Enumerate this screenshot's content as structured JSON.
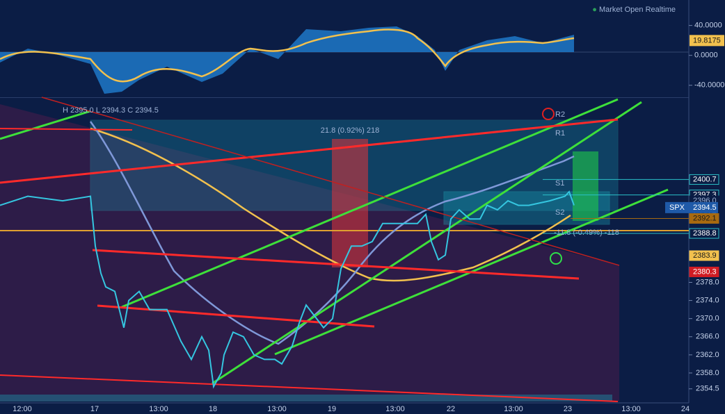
{
  "status": {
    "label": "Market Open",
    "mode": "Realtime"
  },
  "header": {
    "high": "H 2395.0",
    "low": "L 2394.3",
    "close": "C 2394.5"
  },
  "oscillator": {
    "ylim": [
      -56,
      74
    ],
    "yticks": [
      {
        "value": 40,
        "label": "40.0000"
      },
      {
        "value": 0,
        "label": "0.0000"
      },
      {
        "value": -40,
        "label": "-40.0000"
      }
    ],
    "last": {
      "value": 19.8175,
      "label": "19.8175"
    }
  },
  "price_axis": {
    "ylim": [
      2351.4,
      2418.7
    ],
    "yticks": [
      {
        "value": 2354.5,
        "label": "2354.5"
      },
      {
        "value": 2358,
        "label": "2358.0"
      },
      {
        "value": 2362,
        "label": "2362.0"
      },
      {
        "value": 2366,
        "label": "2366.0"
      },
      {
        "value": 2370,
        "label": "2370.0"
      },
      {
        "value": 2374,
        "label": "2374.0"
      },
      {
        "value": 2378,
        "label": "2378.0"
      }
    ]
  },
  "price_tags": [
    {
      "value": 2400.7,
      "label": "2400.7",
      "kind": "r2"
    },
    {
      "value": 2397.3,
      "label": "2397.3",
      "kind": "r1"
    },
    {
      "value": 2396,
      "label": "2396.0",
      "kind": "small"
    },
    {
      "value": 2393.4,
      "label": "2393.4",
      "kind": "small"
    },
    {
      "value": 2392.1,
      "label": "2392.1",
      "kind": "brown"
    },
    {
      "value": 2388.8,
      "label": "2388.8",
      "kind": "s1"
    },
    {
      "value": 2383.9,
      "label": "2383.9",
      "kind": "gold"
    },
    {
      "value": 2380.3,
      "label": "2380.3",
      "kind": "red"
    }
  ],
  "symbol": {
    "name": "SPX",
    "value": 2394.5,
    "label": "2394.5"
  },
  "pivots": {
    "r2": "R2",
    "r1": "R1",
    "s1": "S1",
    "s2": "S2"
  },
  "annotations": {
    "up_move": "21.8 (0.92%) 218",
    "down_move": "-11.8 (-0.49%) -118"
  },
  "x_labels": [
    "12:00",
    "17",
    "13:00",
    "18",
    "13:00",
    "19",
    "13:00",
    "22",
    "13:00",
    "23",
    "13:00",
    "24"
  ],
  "price": {
    "values": [
      2395,
      2397,
      2396,
      2397,
      2386,
      2380,
      2377,
      2376,
      2368,
      2374,
      2376,
      2372,
      2372,
      2365,
      2361,
      2366,
      2363,
      2355,
      2358,
      2362,
      2367,
      2366,
      2362,
      2361,
      2361,
      2360,
      2364,
      2369,
      2373,
      2371,
      2368,
      2370,
      2381,
      2386,
      2386,
      2387,
      2391,
      2391,
      2391,
      2391,
      2393,
      2387,
      2383,
      2384,
      2392,
      2394,
      2392,
      2392,
      2395,
      2394,
      2396,
      2395,
      2395,
      2396,
      2397,
      2398,
      2395
    ]
  }
}
